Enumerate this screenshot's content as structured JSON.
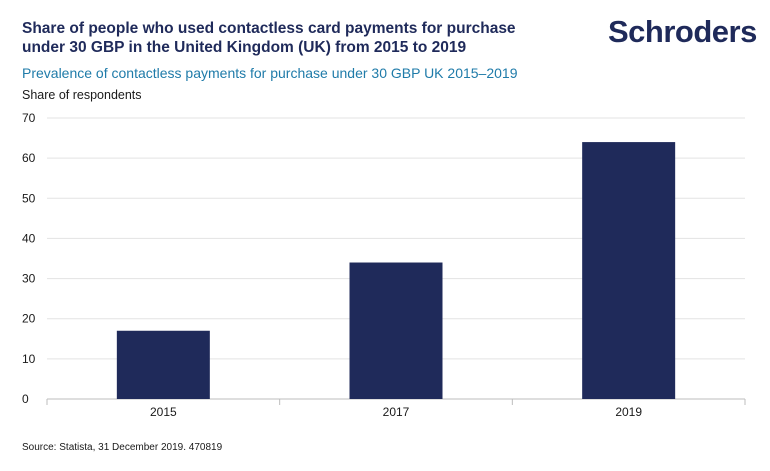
{
  "header": {
    "title": "Share of people who used contactless card payments for purchase under 30 GBP in the United Kingdom (UK) from 2015 to 2019",
    "brand": "Schroders",
    "subtitle": "Prevalence of contactless payments for purchase under 30 GBP UK 2015–2019",
    "unit_label": "Share of respondents"
  },
  "footer": {
    "source": "Source: Statista, 31 December 2019. 470819"
  },
  "colors": {
    "bar": "#1f2a5a",
    "grid": "#e3e3e3",
    "axis": "#bdbdbd"
  },
  "chart_data": {
    "type": "bar",
    "categories": [
      "2015",
      "2017",
      "2019"
    ],
    "values": [
      17,
      34,
      64
    ],
    "ylabel": "Share of respondents",
    "ylim": [
      0,
      70
    ],
    "yticks": [
      0,
      10,
      20,
      30,
      40,
      50,
      60,
      70
    ],
    "grid": true,
    "legend": "none"
  }
}
